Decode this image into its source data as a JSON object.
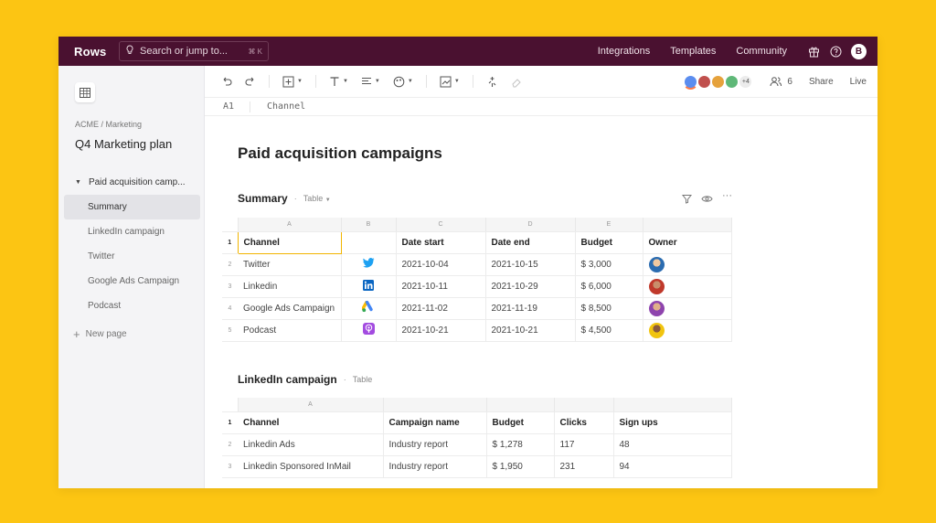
{
  "app": {
    "logo": "Rows",
    "search_placeholder": "Search or jump to...",
    "search_shortcut": "⌘ K",
    "nav": [
      "Integrations",
      "Templates",
      "Community"
    ],
    "user_initial": "B"
  },
  "sidebar": {
    "breadcrumb": "ACME / Marketing",
    "title": "Q4 Marketing plan",
    "items": [
      {
        "label": "Paid acquisition camp..."
      },
      {
        "label": "Summary"
      },
      {
        "label": "LinkedIn campaign"
      },
      {
        "label": "Twitter"
      },
      {
        "label": "Google Ads Campaign"
      },
      {
        "label": "Podcast"
      }
    ],
    "new_page": "New page"
  },
  "toolbar": {
    "collaborators_more": "+4",
    "user_count": "6",
    "share": "Share",
    "live": "Live",
    "colors": {
      "underline": [
        "#ff7a45",
        "#ff7a45",
        "#52c41a",
        "#9254de"
      ]
    }
  },
  "formula_bar": {
    "cell": "A1",
    "value": "Channel"
  },
  "page": {
    "title": "Paid acquisition campaigns"
  },
  "summary_table": {
    "title": "Summary",
    "kind": "Table",
    "col_letters": [
      "A",
      "B",
      "C",
      "D",
      "E",
      ""
    ],
    "row_numbers": [
      "1",
      "2",
      "3",
      "4",
      "5"
    ],
    "headers": [
      "Channel",
      "",
      "Date start",
      "Date end",
      "Budget",
      "Owner"
    ],
    "rows": [
      {
        "channel": "Twitter",
        "icon": "twitter-icon",
        "start": "2021-10-04",
        "end": "2021-10-15",
        "budget": "$ 3,000"
      },
      {
        "channel": "Linkedin",
        "icon": "linkedin-icon",
        "start": "2021-10-11",
        "end": "2021-10-29",
        "budget": "$ 6,000"
      },
      {
        "channel": "Google Ads Campaign",
        "icon": "google-ads-icon",
        "start": "2021-11-02",
        "end": "2021-11-19",
        "budget": "$ 8,500"
      },
      {
        "channel": "Podcast",
        "icon": "podcast-icon",
        "start": "2021-10-21",
        "end": "2021-10-21",
        "budget": "$ 4,500"
      }
    ]
  },
  "linkedin_table": {
    "title": "LinkedIn campaign",
    "kind": "Table",
    "col_letters": [
      "A",
      "",
      "",
      "",
      ""
    ],
    "row_numbers": [
      "1",
      "2",
      "3"
    ],
    "headers": [
      "Channel",
      "Campaign name",
      "Budget",
      "Clicks",
      "Sign ups"
    ],
    "rows": [
      {
        "channel": "Linkedin Ads",
        "campaign": "Industry report",
        "budget": "$ 1,278",
        "clicks": "117",
        "signups": "48"
      },
      {
        "channel": "Linkedin Sponsored InMail",
        "campaign": "Industry report",
        "budget": "$ 1,950",
        "clicks": "231",
        "signups": "94"
      }
    ]
  }
}
